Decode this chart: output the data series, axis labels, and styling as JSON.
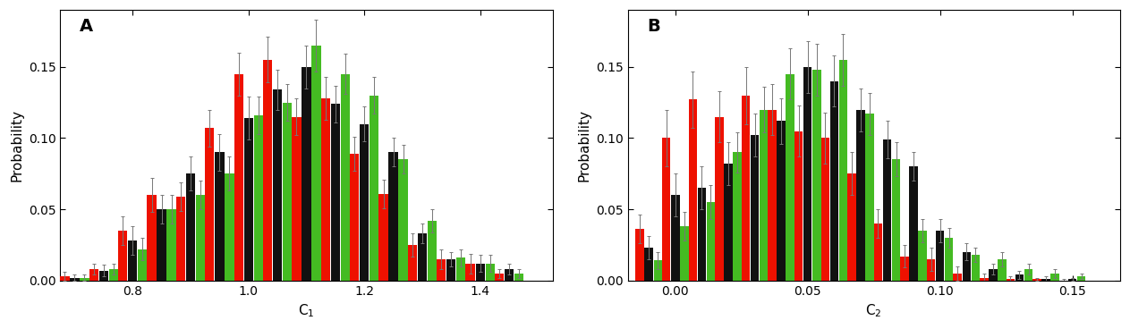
{
  "panel_A": {
    "xlabel": "C$_1$",
    "ylabel": "Probability",
    "label": "A",
    "xlim": [
      0.675,
      1.525
    ],
    "ylim": [
      0,
      0.19
    ],
    "yticks": [
      0,
      0.05,
      0.1,
      0.15
    ],
    "xticks": [
      0.8,
      1.0,
      1.2,
      1.4
    ],
    "bin_width": 0.05,
    "centers": [
      0.7,
      0.75,
      0.8,
      0.85,
      0.9,
      0.95,
      1.0,
      1.05,
      1.1,
      1.15,
      1.2,
      1.25,
      1.3,
      1.35,
      1.4,
      1.45
    ],
    "red_vals": [
      0.003,
      0.008,
      0.035,
      0.06,
      0.059,
      0.107,
      0.145,
      0.155,
      0.115,
      0.128,
      0.089,
      0.061,
      0.025,
      0.015,
      0.012,
      0.005
    ],
    "black_vals": [
      0.002,
      0.007,
      0.028,
      0.05,
      0.075,
      0.09,
      0.114,
      0.134,
      0.15,
      0.124,
      0.11,
      0.09,
      0.033,
      0.015,
      0.012,
      0.008
    ],
    "green_vals": [
      0.002,
      0.008,
      0.022,
      0.05,
      0.06,
      0.075,
      0.116,
      0.125,
      0.165,
      0.145,
      0.13,
      0.085,
      0.042,
      0.016,
      0.012,
      0.005
    ],
    "red_err": [
      0.003,
      0.004,
      0.01,
      0.012,
      0.01,
      0.013,
      0.015,
      0.016,
      0.013,
      0.015,
      0.012,
      0.01,
      0.008,
      0.007,
      0.007,
      0.003
    ],
    "black_err": [
      0.002,
      0.004,
      0.01,
      0.01,
      0.012,
      0.013,
      0.015,
      0.014,
      0.015,
      0.013,
      0.012,
      0.01,
      0.007,
      0.005,
      0.006,
      0.004
    ],
    "green_err": [
      0.002,
      0.004,
      0.008,
      0.01,
      0.01,
      0.012,
      0.013,
      0.013,
      0.018,
      0.014,
      0.013,
      0.01,
      0.008,
      0.006,
      0.006,
      0.003
    ]
  },
  "panel_B": {
    "xlabel": "C$_2$",
    "ylabel": "Probability",
    "label": "B",
    "xlim": [
      -0.018,
      0.168
    ],
    "ylim": [
      0,
      0.19
    ],
    "yticks": [
      0,
      0.05,
      0.1,
      0.15
    ],
    "xticks": [
      0.0,
      0.05,
      0.1,
      0.15
    ],
    "bin_width": 0.01,
    "centers": [
      -0.01,
      0.0,
      0.01,
      0.02,
      0.03,
      0.04,
      0.05,
      0.06,
      0.07,
      0.08,
      0.09,
      0.1,
      0.11,
      0.12,
      0.13,
      0.14,
      0.15
    ],
    "red_vals": [
      0.036,
      0.1,
      0.127,
      0.115,
      0.13,
      0.12,
      0.105,
      0.1,
      0.075,
      0.04,
      0.017,
      0.015,
      0.005,
      0.002,
      0.001,
      0.001,
      0.0
    ],
    "black_vals": [
      0.023,
      0.06,
      0.065,
      0.082,
      0.102,
      0.112,
      0.15,
      0.14,
      0.12,
      0.099,
      0.08,
      0.035,
      0.02,
      0.008,
      0.004,
      0.001,
      0.001
    ],
    "green_vals": [
      0.014,
      0.038,
      0.055,
      0.09,
      0.12,
      0.145,
      0.148,
      0.155,
      0.117,
      0.085,
      0.035,
      0.03,
      0.018,
      0.015,
      0.008,
      0.005,
      0.003
    ],
    "red_err": [
      0.01,
      0.02,
      0.02,
      0.018,
      0.02,
      0.018,
      0.018,
      0.018,
      0.015,
      0.01,
      0.008,
      0.008,
      0.005,
      0.003,
      0.002,
      0.001,
      0.001
    ],
    "black_err": [
      0.008,
      0.015,
      0.015,
      0.015,
      0.015,
      0.016,
      0.018,
      0.018,
      0.015,
      0.013,
      0.01,
      0.008,
      0.006,
      0.004,
      0.003,
      0.002,
      0.001
    ],
    "green_err": [
      0.006,
      0.01,
      0.012,
      0.014,
      0.016,
      0.018,
      0.018,
      0.018,
      0.015,
      0.012,
      0.008,
      0.007,
      0.005,
      0.005,
      0.004,
      0.003,
      0.002
    ]
  },
  "colors": {
    "red": "#ee1100",
    "black": "#111111",
    "green": "#44bb22"
  },
  "figsize": [
    12.63,
    3.68
  ],
  "dpi": 100
}
